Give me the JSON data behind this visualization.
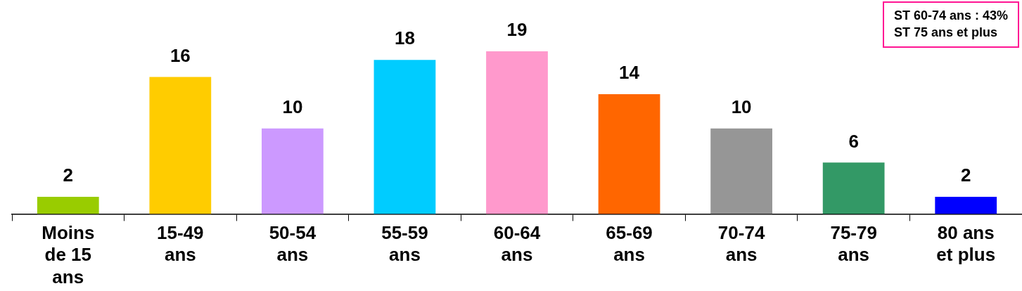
{
  "chart_data": {
    "type": "bar",
    "categories": [
      "Moins de 15 ans",
      "15-49 ans",
      "50-54 ans",
      "55-59 ans",
      "60-64 ans",
      "65-69 ans",
      "70-74 ans",
      "75-79 ans",
      "80 ans et plus"
    ],
    "values": [
      2,
      16,
      10,
      18,
      19,
      14,
      10,
      6,
      2
    ],
    "colors": [
      "#99cc00",
      "#ffcc00",
      "#cc99ff",
      "#00ccff",
      "#ff99cc",
      "#ff6600",
      "#969696",
      "#339966",
      "#0000ff"
    ],
    "data_labels": true,
    "annotations": [
      "ST 60-74 ans : 43%",
      "ST 75 ans et plus"
    ],
    "grid": false,
    "legend": false
  }
}
